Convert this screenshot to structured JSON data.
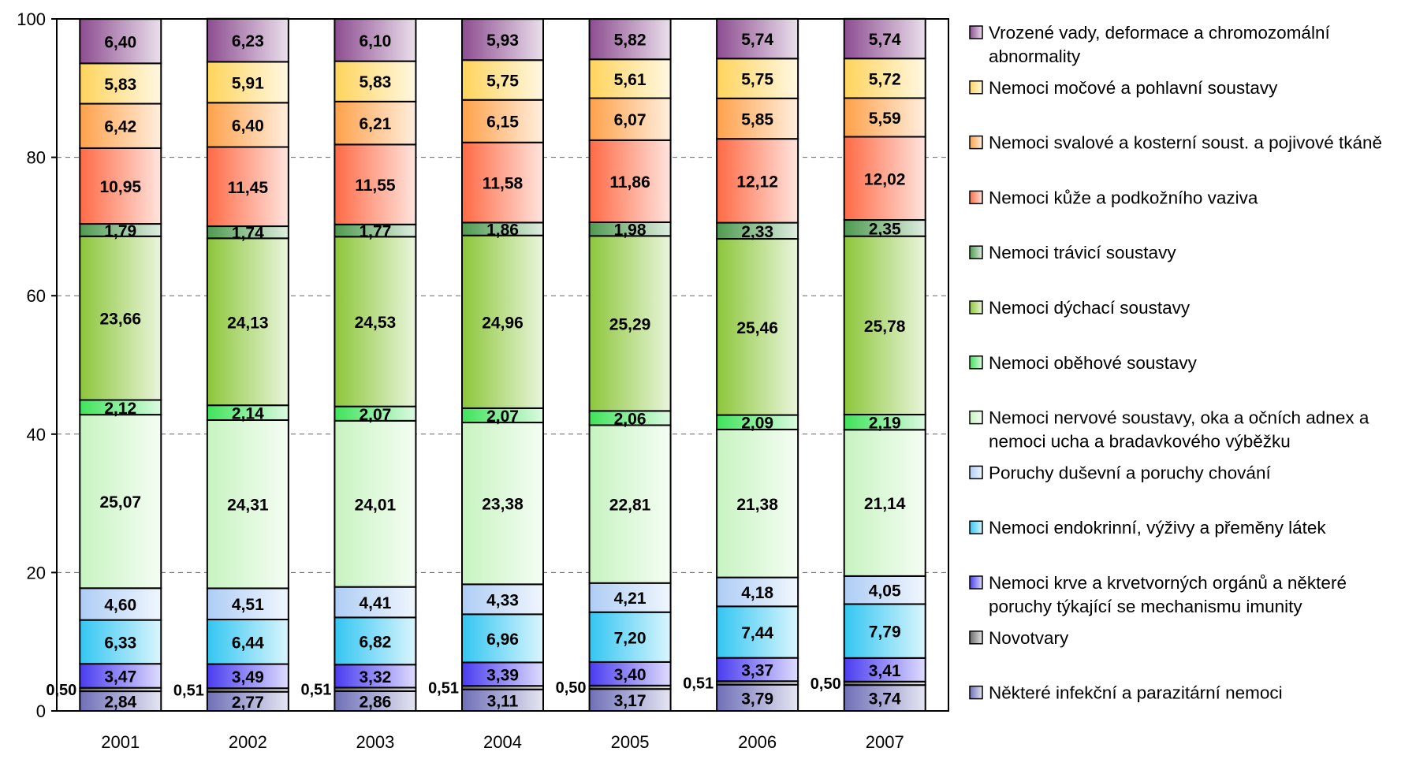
{
  "chart_data": {
    "type": "bar",
    "stacked": true,
    "ylim": [
      0,
      100
    ],
    "yticks": [
      "0",
      "20",
      "40",
      "60",
      "80",
      "100"
    ],
    "grid": "horizontal dashed",
    "legend_placement": "right",
    "categories": [
      "2001",
      "2002",
      "2003",
      "2004",
      "2005",
      "2006",
      "2007"
    ],
    "series": [
      {
        "name": "Některé infekční a parazitární nemoci",
        "color": "#6f6fb8",
        "values": [
          2.84,
          2.77,
          2.86,
          3.11,
          3.17,
          3.79,
          3.74
        ],
        "labels": [
          "2,84",
          "2,77",
          "2,86",
          "3,11",
          "3,17",
          "3,79",
          "3,74"
        ]
      },
      {
        "name": "Novotvary",
        "color": "#6a6a6a",
        "values": [
          0.5,
          0.51,
          0.51,
          0.51,
          0.5,
          0.51,
          0.5
        ],
        "labels": [
          "0,50",
          "0,51",
          "0,51",
          "0,51",
          "0,50",
          "0,51",
          "0,50"
        ]
      },
      {
        "name": "Nemoci krve a krvetvorných orgánů a některé poruchy týkající se mechanismu imunity",
        "color": "#4a3cf0",
        "values": [
          3.47,
          3.49,
          3.32,
          3.39,
          3.4,
          3.37,
          3.41
        ],
        "labels": [
          "3,47",
          "3,49",
          "3,32",
          "3,39",
          "3,40",
          "3,37",
          "3,41"
        ]
      },
      {
        "name": "Nemoci endokrinní, výživy a přeměny látek",
        "color": "#33c6f2",
        "values": [
          6.33,
          6.44,
          6.82,
          6.96,
          7.2,
          7.44,
          7.79
        ],
        "labels": [
          "6,33",
          "6,44",
          "6,82",
          "6,96",
          "7,20",
          "7,44",
          "7,79"
        ]
      },
      {
        "name": "Poruchy duševní a poruchy chování",
        "color": "#aecdf5",
        "values": [
          4.6,
          4.51,
          4.41,
          4.33,
          4.21,
          4.18,
          4.05
        ],
        "labels": [
          "4,60",
          "4,51",
          "4,41",
          "4,33",
          "4,21",
          "4,18",
          "4,05"
        ]
      },
      {
        "name": "Nemoci nervové soustavy, oka a očních adnex a nemoci ucha a bradavkového výběžku",
        "color": "#c7f3c0",
        "values": [
          25.07,
          24.31,
          24.01,
          23.38,
          22.81,
          21.38,
          21.14
        ],
        "labels": [
          "25,07",
          "24,31",
          "24,01",
          "23,38",
          "22,81",
          "21,38",
          "21,14"
        ]
      },
      {
        "name": "Nemoci oběhové soustavy",
        "color": "#3ee35a",
        "values": [
          2.12,
          2.14,
          2.07,
          2.07,
          2.06,
          2.09,
          2.19
        ],
        "labels": [
          "2,12",
          "2,14",
          "2,07",
          "2,07",
          "2,06",
          "2,09",
          "2,19"
        ]
      },
      {
        "name": "Nemoci dýchací soustavy",
        "color": "#8cc63a",
        "values": [
          23.66,
          24.13,
          24.53,
          24.96,
          25.29,
          25.46,
          25.78
        ],
        "labels": [
          "23,66",
          "24,13",
          "24,53",
          "24,96",
          "25,29",
          "25,46",
          "25,78"
        ]
      },
      {
        "name": "Nemoci trávicí soustavy",
        "color": "#4e9a50",
        "values": [
          1.79,
          1.74,
          1.77,
          1.86,
          1.98,
          2.33,
          2.35
        ],
        "labels": [
          "1,79",
          "1,74",
          "1,77",
          "1,86",
          "1,98",
          "2,33",
          "2,35"
        ]
      },
      {
        "name": "Nemoci kůže a podkožního vaziva",
        "color": "#ff6a45",
        "values": [
          10.95,
          11.45,
          11.55,
          11.58,
          11.86,
          12.12,
          12.02
        ],
        "labels": [
          "10,95",
          "11,45",
          "11,55",
          "11,58",
          "11,86",
          "12,12",
          "12,02"
        ]
      },
      {
        "name": "Nemoci svalové a kosterní soust. a pojivové tkáně",
        "color": "#ffa14a",
        "values": [
          6.42,
          6.4,
          6.21,
          6.15,
          6.07,
          5.85,
          5.59
        ],
        "labels": [
          "6,42",
          "6,40",
          "6,21",
          "6,15",
          "6,07",
          "5,85",
          "5,59"
        ]
      },
      {
        "name": "Nemoci močové a pohlavní soustavy",
        "color": "#ffd45c",
        "values": [
          5.83,
          5.91,
          5.83,
          5.75,
          5.61,
          5.75,
          5.72
        ],
        "labels": [
          "5,83",
          "5,91",
          "5,83",
          "5,75",
          "5,61",
          "5,75",
          "5,72"
        ]
      },
      {
        "name": "Vrozené vady, deformace a chromozomální abnormality",
        "color": "#8d4d91",
        "values": [
          6.4,
          6.23,
          6.1,
          5.93,
          5.82,
          5.74,
          5.74
        ],
        "labels": [
          "6,40",
          "6,23",
          "6,10",
          "5,93",
          "5,82",
          "5,74",
          "5,74"
        ]
      }
    ],
    "legend": [
      {
        "lines": [
          "Vrozené vady, deformace  a chromozomální",
          "abnormality"
        ],
        "color": "#8d4d91"
      },
      {
        "lines": [
          "Nemoci močové a pohlavní soustavy"
        ],
        "color": "#ffd45c"
      },
      {
        "lines": [
          "Nemoci svalové a kosterní soust. a pojivové tkáně"
        ],
        "color": "#ffa14a"
      },
      {
        "lines": [
          "Nemoci kůže a podkožního vaziva"
        ],
        "color": "#ff6a45"
      },
      {
        "lines": [
          "Nemoci trávicí soustavy"
        ],
        "color": "#4e9a50"
      },
      {
        "lines": [
          "Nemoci dýchací soustavy"
        ],
        "color": "#8cc63a"
      },
      {
        "lines": [
          "Nemoci oběhové soustavy"
        ],
        "color": "#3ee35a"
      },
      {
        "lines": [
          "Nemoci nervové soustavy, oka a očních adnex a",
          "nemoci ucha a bradavkového výběžku"
        ],
        "color": "#c7f3c0"
      },
      {
        "lines": [
          "Poruchy duševní a poruchy chování"
        ],
        "color": "#aecdf5"
      },
      {
        "lines": [
          "Nemoci endokrinní, výživy a přeměny látek"
        ],
        "color": "#33c6f2"
      },
      {
        "lines": [
          "Nemoci krve a krvetvorných orgánů a některé",
          "poruchy týkající se mechanismu imunity"
        ],
        "color": "#4a3cf0"
      },
      {
        "lines": [
          "Novotvary"
        ],
        "color": "#6a6a6a"
      },
      {
        "lines": [
          "Některé infekční a parazitární nemoci"
        ],
        "color": "#6f6fb8"
      }
    ]
  }
}
